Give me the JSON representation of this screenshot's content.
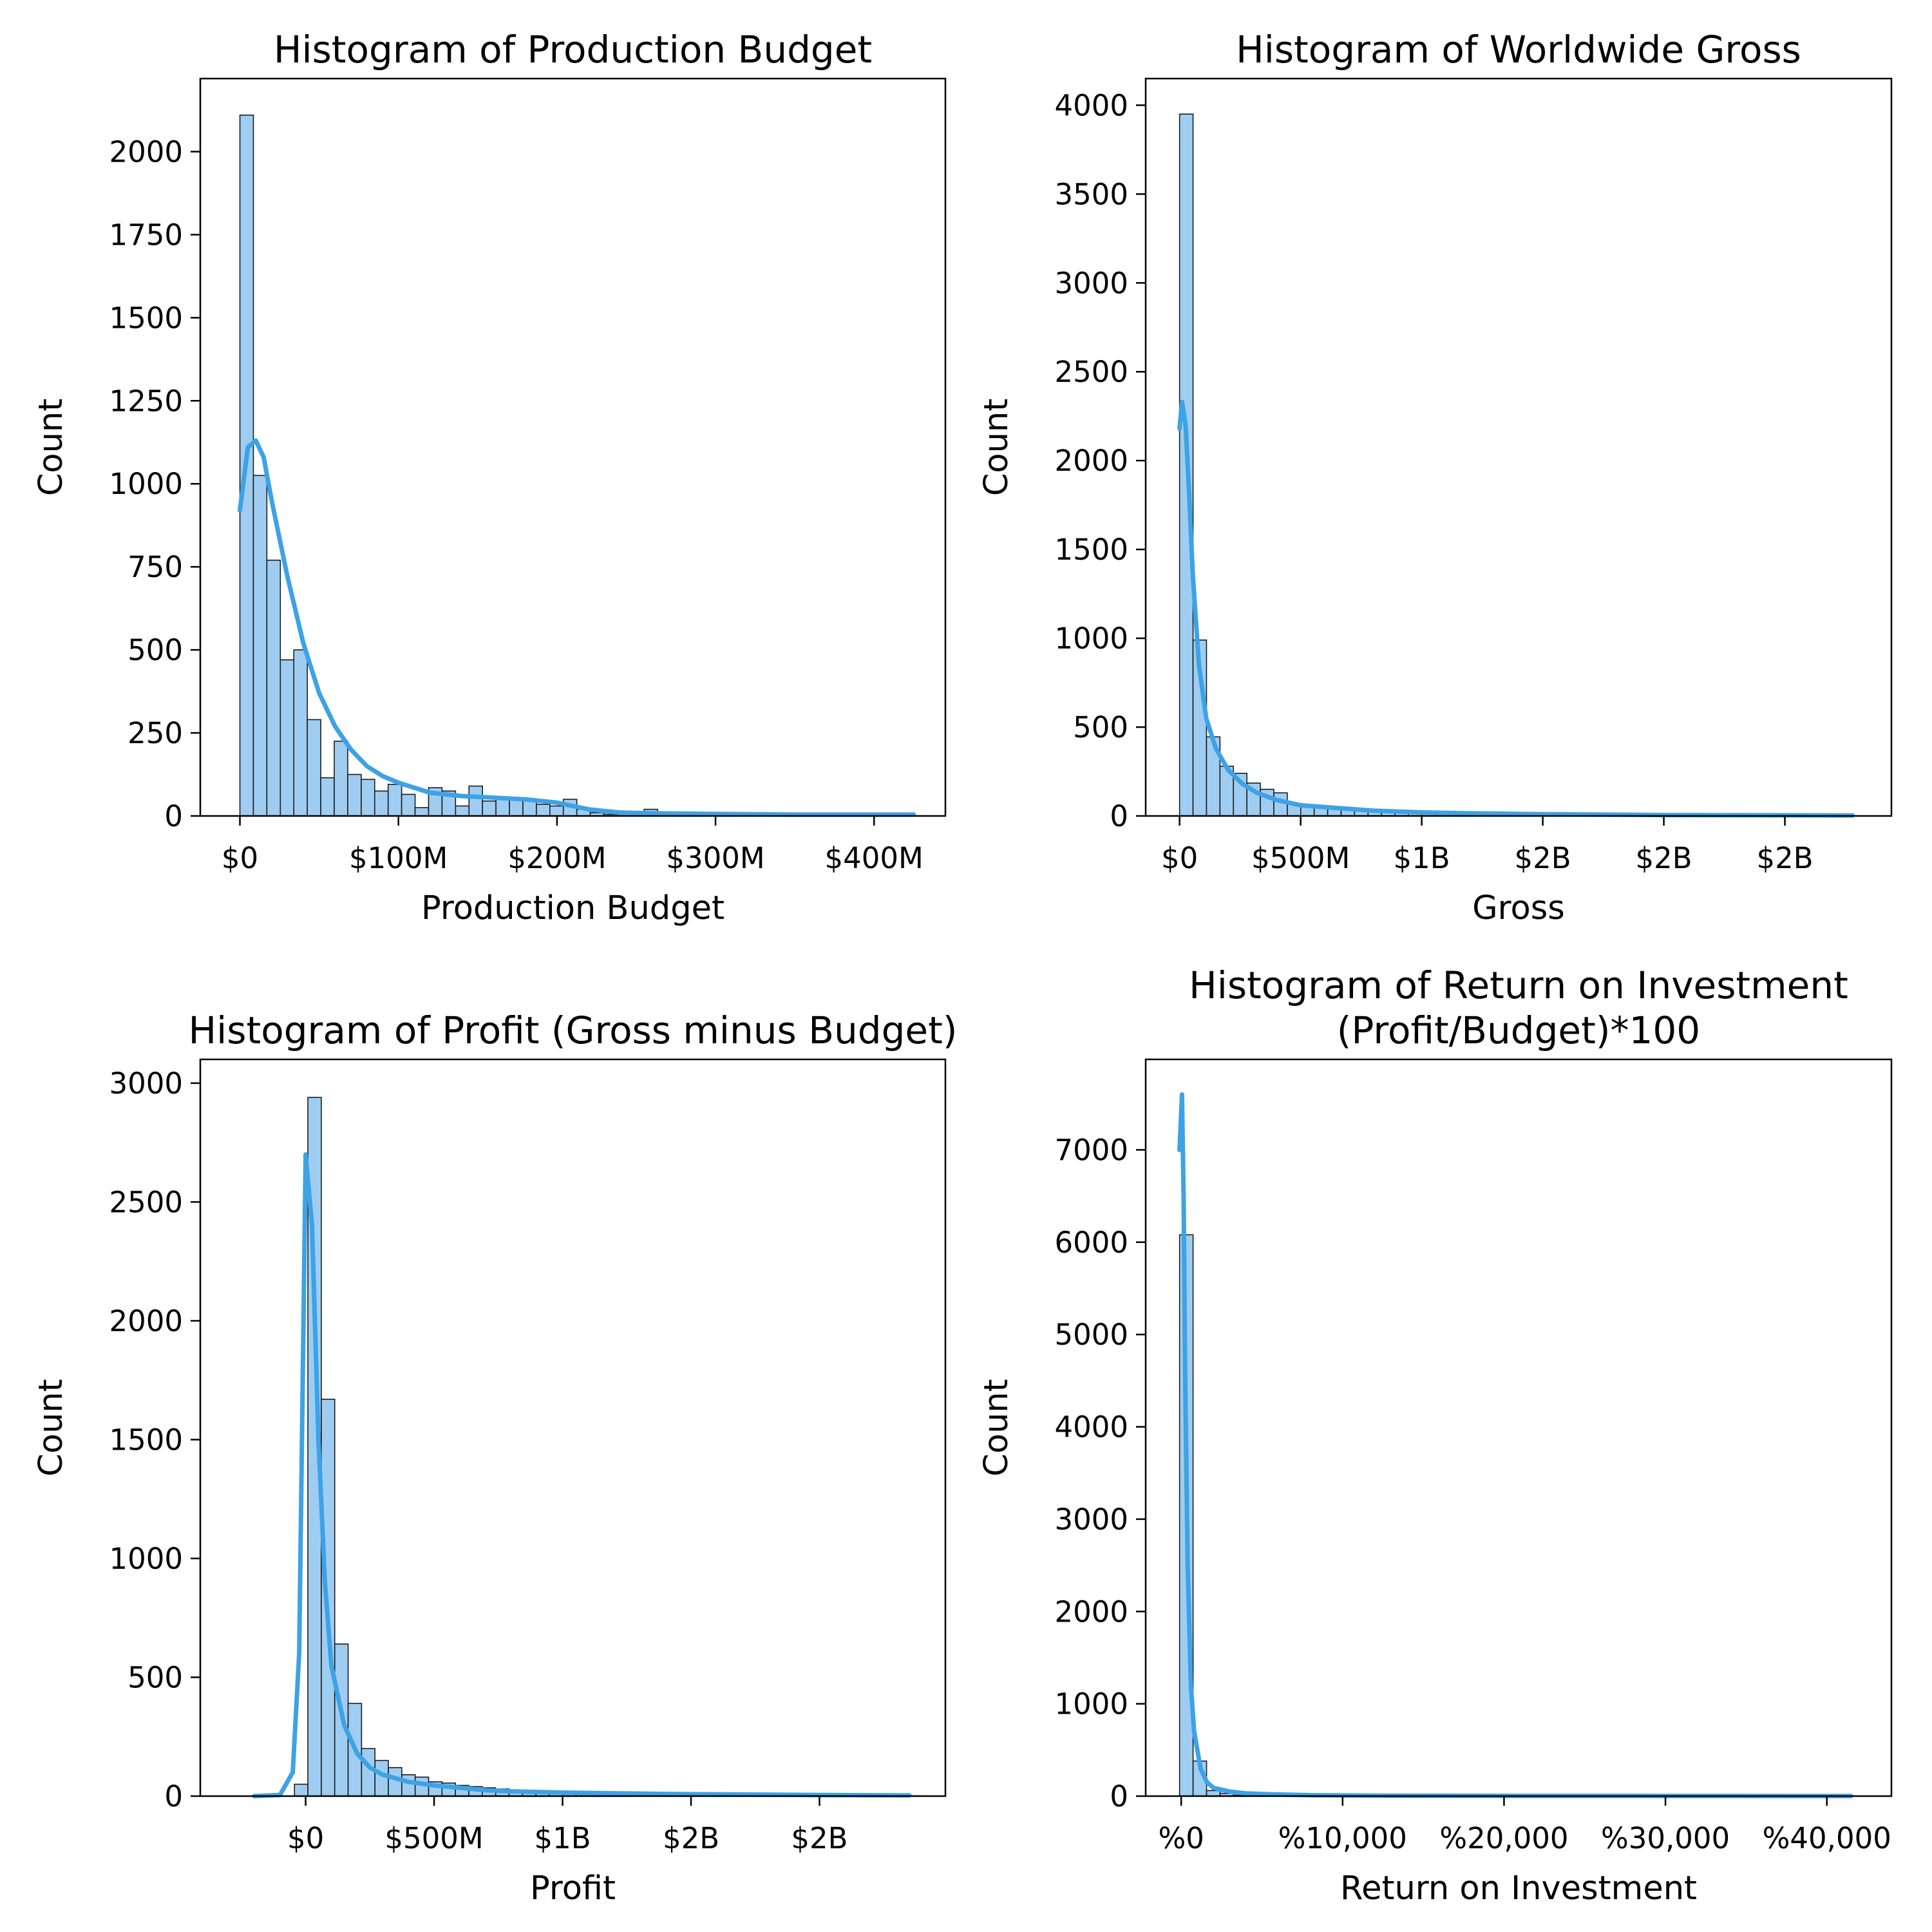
{
  "style": {
    "bar_fill": "#9fcdf2",
    "bar_edge": "#1c1c1c",
    "kde_color": "#3da2e6",
    "axis_color": "#000000"
  },
  "chart_data": [
    {
      "type": "bar",
      "title": "Histogram of Production Budget",
      "xlabel": "Production Budget",
      "ylabel": "Count",
      "xlim": [
        -25000000,
        445000000
      ],
      "ylim": [
        0,
        2220
      ],
      "xticks": [
        0,
        100000000,
        200000000,
        300000000,
        400000000
      ],
      "xtick_labels": [
        "$0",
        "$100M",
        "$200M",
        "$300M",
        "$400M"
      ],
      "yticks": [
        0,
        250,
        500,
        750,
        1000,
        1250,
        1500,
        1750,
        2000
      ],
      "ytick_labels": [
        "0",
        "250",
        "500",
        "750",
        "1000",
        "1250",
        "1500",
        "1750",
        "2000"
      ],
      "bin_start": 0,
      "bin_width": 8500000,
      "counts": [
        2110,
        1025,
        770,
        470,
        500,
        290,
        115,
        225,
        125,
        110,
        75,
        95,
        65,
        25,
        85,
        75,
        30,
        90,
        45,
        50,
        50,
        50,
        35,
        30,
        50,
        20,
        10,
        5,
        5,
        5,
        20,
        5,
        5,
        5,
        4,
        4,
        4,
        4,
        2,
        2,
        2,
        2,
        2,
        2,
        2,
        2,
        2,
        2,
        2,
        2
      ],
      "kde": {
        "x": [
          0,
          5000000,
          10000000,
          15000000,
          20000000,
          30000000,
          40000000,
          50000000,
          60000000,
          70000000,
          80000000,
          90000000,
          100000000,
          120000000,
          140000000,
          160000000,
          180000000,
          200000000,
          220000000,
          240000000,
          260000000,
          300000000,
          350000000,
          425000000
        ],
        "y": [
          920,
          1110,
          1130,
          1080,
          950,
          720,
          520,
          370,
          270,
          200,
          150,
          120,
          100,
          70,
          60,
          55,
          50,
          40,
          20,
          10,
          8,
          6,
          4,
          4
        ]
      }
    },
    {
      "type": "bar",
      "title": "Histogram of Worldwide Gross",
      "xlabel": "Gross",
      "ylabel": "Count",
      "xlim": [
        -140000000,
        2940000000
      ],
      "ylim": [
        0,
        4150
      ],
      "xticks": [
        0,
        500000000,
        1000000000,
        1500000000,
        2000000000,
        2500000000
      ],
      "xtick_labels": [
        "$0",
        "$500M",
        "$1B",
        "$2B",
        "$2B",
        "$2B"
      ],
      "yticks": [
        0,
        500,
        1000,
        1500,
        2000,
        2500,
        3000,
        3500,
        4000
      ],
      "ytick_labels": [
        "0",
        "500",
        "1000",
        "1500",
        "2000",
        "2500",
        "3000",
        "3500",
        "4000"
      ],
      "bin_start": 0,
      "bin_width": 55600000,
      "counts": [
        3950,
        990,
        445,
        280,
        240,
        185,
        150,
        130,
        70,
        60,
        55,
        50,
        45,
        40,
        35,
        30,
        25,
        25,
        20,
        18,
        15,
        12,
        10,
        10,
        8,
        6,
        5,
        5,
        4,
        4,
        3,
        3,
        2,
        2,
        2,
        2,
        2,
        2,
        1,
        1,
        1,
        1,
        1,
        1,
        1,
        1,
        1,
        1,
        1,
        1
      ],
      "kde": {
        "x": [
          0,
          10000000,
          25000000,
          40000000,
          55000000,
          80000000,
          110000000,
          150000000,
          200000000,
          260000000,
          320000000,
          400000000,
          500000000,
          650000000,
          800000000,
          1000000000,
          1200000000,
          1500000000,
          2000000000,
          2780000000
        ],
        "y": [
          2180,
          2330,
          2200,
          1800,
          1350,
          850,
          550,
          380,
          260,
          180,
          130,
          90,
          60,
          45,
          30,
          20,
          15,
          10,
          5,
          3
        ]
      }
    },
    {
      "type": "bar",
      "title": "Histogram of Profit (Gross minus Budget)",
      "xlabel": "Profit",
      "ylabel": "Count",
      "xlim": [
        -410000000,
        2490000000
      ],
      "ylim": [
        0,
        3100
      ],
      "xticks": [
        0,
        500000000,
        1000000000,
        1500000000,
        2000000000
      ],
      "xtick_labels": [
        "$0",
        "$500M",
        "$1B",
        "$2B",
        "$2B"
      ],
      "yticks": [
        0,
        500,
        1000,
        1500,
        2000,
        2500,
        3000
      ],
      "ytick_labels": [
        "0",
        "500",
        "1000",
        "1500",
        "2000",
        "2500",
        "3000"
      ],
      "bin_start": -200000000,
      "bin_width": 52200000,
      "counts": [
        0,
        0,
        0,
        50,
        2940,
        1670,
        640,
        390,
        200,
        150,
        120,
        90,
        80,
        60,
        55,
        45,
        40,
        35,
        30,
        25,
        20,
        18,
        16,
        14,
        12,
        10,
        9,
        8,
        7,
        6,
        5,
        5,
        4,
        4,
        3,
        3,
        3,
        2,
        2,
        2,
        2,
        2,
        2,
        1,
        1,
        1,
        1,
        1,
        1,
        1
      ],
      "kde": {
        "x": [
          -200000000,
          -100000000,
          -50000000,
          -25000000,
          0,
          25000000,
          50000000,
          75000000,
          100000000,
          150000000,
          200000000,
          250000000,
          300000000,
          400000000,
          500000000,
          600000000,
          700000000,
          800000000,
          1000000000,
          1200000000,
          1500000000,
          2000000000,
          2350000000
        ],
        "y": [
          0,
          5,
          100,
          600,
          2700,
          2400,
          1500,
          900,
          550,
          300,
          180,
          120,
          90,
          60,
          45,
          35,
          25,
          20,
          15,
          12,
          8,
          5,
          3
        ]
      }
    },
    {
      "type": "bar",
      "title": "Histogram of Return on Investment\n(Profit/Budget)*100",
      "xlabel": "Return on Investment",
      "ylabel": "Count",
      "xlim": [
        -2200,
        44000
      ],
      "ylim": [
        0,
        7980
      ],
      "xticks": [
        0,
        10000,
        20000,
        30000,
        40000
      ],
      "xtick_labels": [
        "%0",
        "%10,000",
        "%20,000",
        "%30,000",
        "%40,000"
      ],
      "yticks": [
        0,
        1000,
        2000,
        3000,
        4000,
        5000,
        6000,
        7000
      ],
      "ytick_labels": [
        "0",
        "1000",
        "2000",
        "3000",
        "4000",
        "5000",
        "6000",
        "7000"
      ],
      "bin_start": -100,
      "bin_width": 836,
      "counts": [
        6080,
        380,
        60,
        30,
        10,
        8,
        5,
        4,
        3,
        2,
        2,
        2,
        1,
        1,
        1,
        1,
        1,
        1,
        1,
        1,
        1,
        1,
        1,
        1,
        1,
        1,
        1,
        1,
        1,
        1,
        1,
        1,
        1,
        1,
        1,
        1,
        1,
        1,
        1,
        1,
        1,
        1,
        1,
        1,
        1,
        1,
        1,
        1,
        1,
        1
      ],
      "kde": {
        "x": [
          -100,
          50,
          150,
          250,
          400,
          600,
          800,
          1200,
          1600,
          2000,
          2500,
          3000,
          4000,
          5500,
          8000,
          12000,
          20000,
          30000,
          41500
        ],
        "y": [
          7000,
          7600,
          6500,
          4500,
          2500,
          1200,
          700,
          300,
          150,
          90,
          70,
          50,
          30,
          20,
          10,
          5,
          3,
          2,
          1
        ]
      }
    }
  ]
}
